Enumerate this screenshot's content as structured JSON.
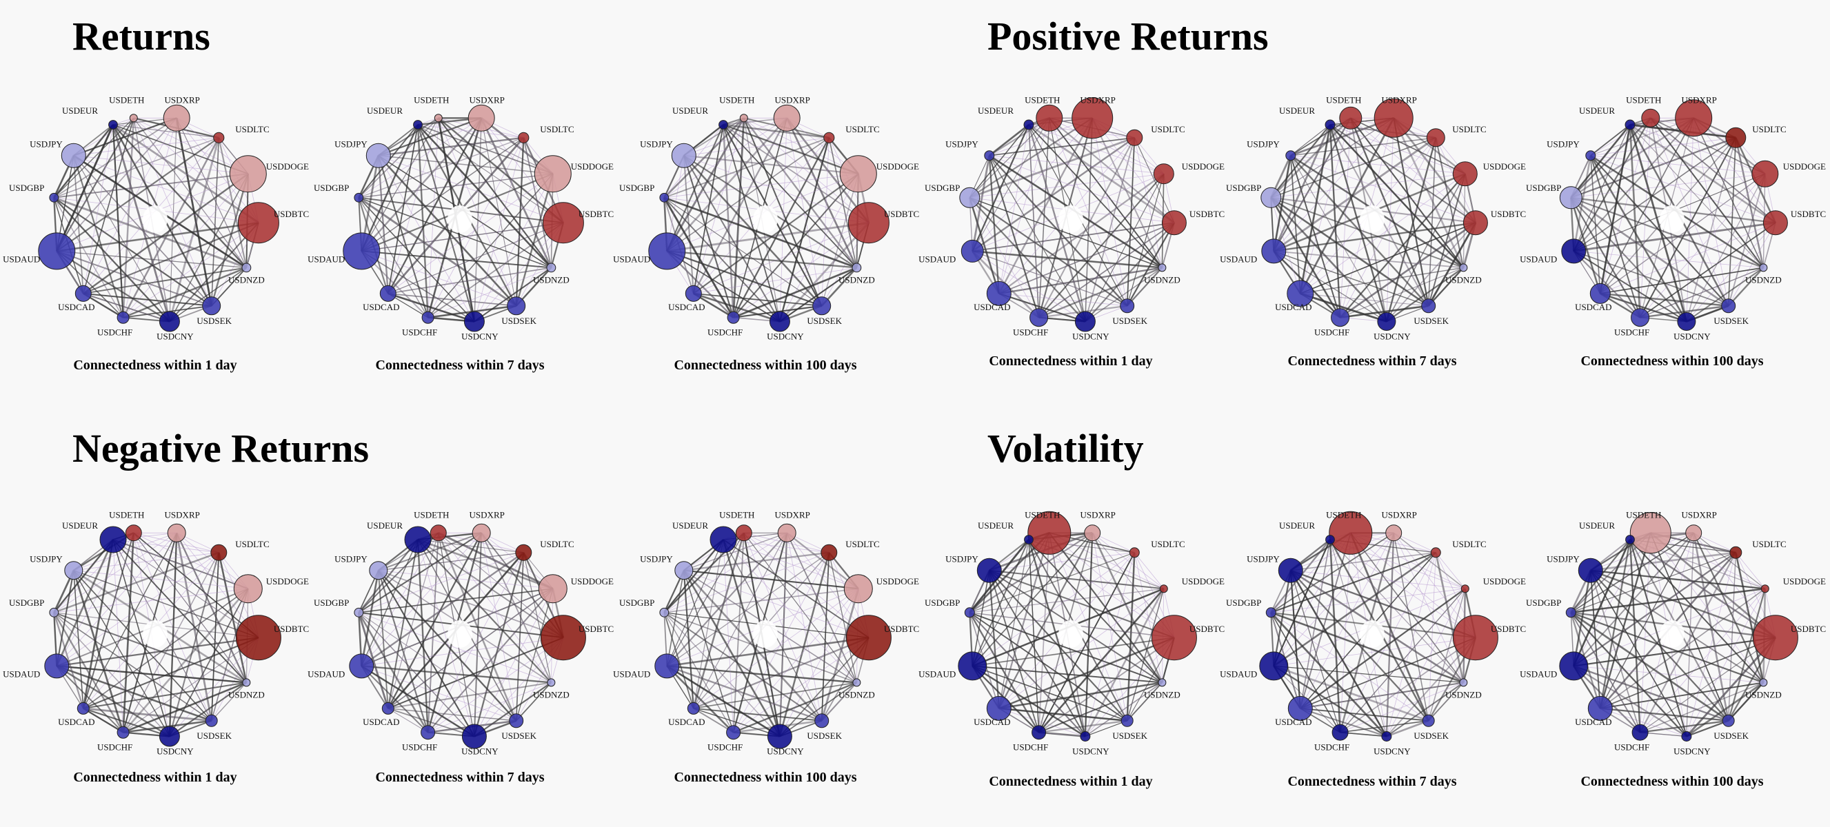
{
  "node_labels": [
    "USDETH",
    "USDXRP",
    "USDLTC",
    "USDDOGE",
    "USDBTC",
    "USDNZD",
    "USDSEK",
    "USDCNY",
    "USDCHF",
    "USDCAD",
    "USDAUD",
    "USDGBP",
    "USDJPY",
    "USDEUR"
  ],
  "colors": {
    "red_dark": "#8b1a12",
    "red": "#a83232",
    "red_light": "#d49a9a",
    "blue_dark": "#0c0c8c",
    "blue": "#3a3ab0",
    "blue_light": "#a0a0dc",
    "edge_strong": "#333333",
    "edge_weak": "#b89ad0"
  },
  "panels": [
    {
      "title": "Returns",
      "networks": [
        {
          "caption": "Connectedness within 1 day",
          "nodes": [
            {
              "size": 0.05,
              "color": "red_light"
            },
            {
              "size": 0.5,
              "color": "red_light"
            },
            {
              "size": 0.12,
              "color": "red"
            },
            {
              "size": 0.75,
              "color": "red_light"
            },
            {
              "size": 0.85,
              "color": "red"
            },
            {
              "size": 0.08,
              "color": "blue_light"
            },
            {
              "size": 0.3,
              "color": "blue"
            },
            {
              "size": 0.35,
              "color": "blue_dark"
            },
            {
              "size": 0.15,
              "color": "blue"
            },
            {
              "size": 0.25,
              "color": "blue"
            },
            {
              "size": 0.75,
              "color": "blue"
            },
            {
              "size": 0.08,
              "color": "blue"
            },
            {
              "size": 0.45,
              "color": "blue_light"
            },
            {
              "size": 0.08,
              "color": "blue_dark"
            }
          ]
        },
        {
          "caption": "Connectedness within 7 days",
          "nodes": [
            {
              "size": 0.05,
              "color": "red_light"
            },
            {
              "size": 0.5,
              "color": "red_light"
            },
            {
              "size": 0.12,
              "color": "red"
            },
            {
              "size": 0.75,
              "color": "red_light"
            },
            {
              "size": 0.85,
              "color": "red"
            },
            {
              "size": 0.08,
              "color": "blue_light"
            },
            {
              "size": 0.3,
              "color": "blue"
            },
            {
              "size": 0.35,
              "color": "blue_dark"
            },
            {
              "size": 0.15,
              "color": "blue"
            },
            {
              "size": 0.25,
              "color": "blue"
            },
            {
              "size": 0.75,
              "color": "blue"
            },
            {
              "size": 0.08,
              "color": "blue"
            },
            {
              "size": 0.45,
              "color": "blue_light"
            },
            {
              "size": 0.08,
              "color": "blue_dark"
            }
          ]
        },
        {
          "caption": "Connectedness within 100 days",
          "nodes": [
            {
              "size": 0.05,
              "color": "red_light"
            },
            {
              "size": 0.5,
              "color": "red_light"
            },
            {
              "size": 0.12,
              "color": "red"
            },
            {
              "size": 0.75,
              "color": "red_light"
            },
            {
              "size": 0.85,
              "color": "red"
            },
            {
              "size": 0.08,
              "color": "blue_light"
            },
            {
              "size": 0.3,
              "color": "blue"
            },
            {
              "size": 0.35,
              "color": "blue_dark"
            },
            {
              "size": 0.15,
              "color": "blue"
            },
            {
              "size": 0.25,
              "color": "blue"
            },
            {
              "size": 0.75,
              "color": "blue"
            },
            {
              "size": 0.08,
              "color": "blue"
            },
            {
              "size": 0.45,
              "color": "blue_light"
            },
            {
              "size": 0.08,
              "color": "blue_dark"
            }
          ]
        }
      ]
    },
    {
      "title": "Positive Returns",
      "networks": [
        {
          "caption": "Connectedness within 1 day",
          "nodes": [
            {
              "size": 0.5,
              "color": "red"
            },
            {
              "size": 0.85,
              "color": "red"
            },
            {
              "size": 0.25,
              "color": "red"
            },
            {
              "size": 0.35,
              "color": "red"
            },
            {
              "size": 0.45,
              "color": "red"
            },
            {
              "size": 0.05,
              "color": "blue_light"
            },
            {
              "size": 0.2,
              "color": "blue"
            },
            {
              "size": 0.35,
              "color": "blue_dark"
            },
            {
              "size": 0.3,
              "color": "blue"
            },
            {
              "size": 0.45,
              "color": "blue"
            },
            {
              "size": 0.4,
              "color": "blue"
            },
            {
              "size": 0.35,
              "color": "blue_light"
            },
            {
              "size": 0.1,
              "color": "blue"
            },
            {
              "size": 0.1,
              "color": "blue_dark"
            }
          ]
        },
        {
          "caption": "Connectedness within 7 days",
          "nodes": [
            {
              "size": 0.4,
              "color": "red"
            },
            {
              "size": 0.8,
              "color": "red"
            },
            {
              "size": 0.3,
              "color": "red"
            },
            {
              "size": 0.45,
              "color": "red"
            },
            {
              "size": 0.45,
              "color": "red"
            },
            {
              "size": 0.05,
              "color": "blue_light"
            },
            {
              "size": 0.2,
              "color": "blue"
            },
            {
              "size": 0.3,
              "color": "blue_dark"
            },
            {
              "size": 0.3,
              "color": "blue"
            },
            {
              "size": 0.5,
              "color": "blue"
            },
            {
              "size": 0.45,
              "color": "blue"
            },
            {
              "size": 0.35,
              "color": "blue_light"
            },
            {
              "size": 0.1,
              "color": "blue"
            },
            {
              "size": 0.1,
              "color": "blue_dark"
            }
          ]
        },
        {
          "caption": "Connectedness within 100 days",
          "nodes": [
            {
              "size": 0.3,
              "color": "red"
            },
            {
              "size": 0.75,
              "color": "red"
            },
            {
              "size": 0.35,
              "color": "red_dark"
            },
            {
              "size": 0.5,
              "color": "red"
            },
            {
              "size": 0.45,
              "color": "red"
            },
            {
              "size": 0.05,
              "color": "blue_light"
            },
            {
              "size": 0.2,
              "color": "blue"
            },
            {
              "size": 0.3,
              "color": "blue_dark"
            },
            {
              "size": 0.3,
              "color": "blue"
            },
            {
              "size": 0.35,
              "color": "blue"
            },
            {
              "size": 0.45,
              "color": "blue_dark"
            },
            {
              "size": 0.4,
              "color": "blue_light"
            },
            {
              "size": 0.1,
              "color": "blue"
            },
            {
              "size": 0.1,
              "color": "blue_dark"
            }
          ]
        }
      ]
    },
    {
      "title": "Negative Returns",
      "networks": [
        {
          "caption": "Connectedness within 1 day",
          "nodes": [
            {
              "size": 0.25,
              "color": "red"
            },
            {
              "size": 0.3,
              "color": "red_light"
            },
            {
              "size": 0.25,
              "color": "red_dark"
            },
            {
              "size": 0.55,
              "color": "red_light"
            },
            {
              "size": 0.95,
              "color": "red_dark"
            },
            {
              "size": 0.05,
              "color": "blue_light"
            },
            {
              "size": 0.15,
              "color": "blue"
            },
            {
              "size": 0.35,
              "color": "blue_dark"
            },
            {
              "size": 0.15,
              "color": "blue"
            },
            {
              "size": 0.15,
              "color": "blue"
            },
            {
              "size": 0.45,
              "color": "blue"
            },
            {
              "size": 0.08,
              "color": "blue_light"
            },
            {
              "size": 0.3,
              "color": "blue_light"
            },
            {
              "size": 0.5,
              "color": "blue_dark"
            }
          ]
        },
        {
          "caption": "Connectedness within 7 days",
          "nodes": [
            {
              "size": 0.25,
              "color": "red"
            },
            {
              "size": 0.3,
              "color": "red_light"
            },
            {
              "size": 0.25,
              "color": "red_dark"
            },
            {
              "size": 0.55,
              "color": "red_light"
            },
            {
              "size": 0.95,
              "color": "red_dark"
            },
            {
              "size": 0.05,
              "color": "blue_light"
            },
            {
              "size": 0.2,
              "color": "blue"
            },
            {
              "size": 0.45,
              "color": "blue_dark"
            },
            {
              "size": 0.2,
              "color": "blue"
            },
            {
              "size": 0.15,
              "color": "blue"
            },
            {
              "size": 0.45,
              "color": "blue"
            },
            {
              "size": 0.08,
              "color": "blue_light"
            },
            {
              "size": 0.3,
              "color": "blue_light"
            },
            {
              "size": 0.5,
              "color": "blue_dark"
            }
          ]
        },
        {
          "caption": "Connectedness within 100 days",
          "nodes": [
            {
              "size": 0.25,
              "color": "red"
            },
            {
              "size": 0.3,
              "color": "red_light"
            },
            {
              "size": 0.25,
              "color": "red_dark"
            },
            {
              "size": 0.55,
              "color": "red_light"
            },
            {
              "size": 0.95,
              "color": "red_dark"
            },
            {
              "size": 0.05,
              "color": "blue_light"
            },
            {
              "size": 0.2,
              "color": "blue"
            },
            {
              "size": 0.45,
              "color": "blue_dark"
            },
            {
              "size": 0.2,
              "color": "blue"
            },
            {
              "size": 0.15,
              "color": "blue"
            },
            {
              "size": 0.45,
              "color": "blue"
            },
            {
              "size": 0.08,
              "color": "blue_light"
            },
            {
              "size": 0.3,
              "color": "blue_light"
            },
            {
              "size": 0.5,
              "color": "blue_dark"
            }
          ]
        }
      ]
    },
    {
      "title": "Volatility",
      "networks": [
        {
          "caption": "Connectedness within 1 day",
          "nodes": [
            {
              "size": 0.9,
              "color": "red"
            },
            {
              "size": 0.25,
              "color": "red_light"
            },
            {
              "size": 0.1,
              "color": "red"
            },
            {
              "size": 0.05,
              "color": "red"
            },
            {
              "size": 0.95,
              "color": "red"
            },
            {
              "size": 0.05,
              "color": "blue_light"
            },
            {
              "size": 0.15,
              "color": "blue"
            },
            {
              "size": 0.1,
              "color": "blue_dark"
            },
            {
              "size": 0.2,
              "color": "blue_dark"
            },
            {
              "size": 0.45,
              "color": "blue"
            },
            {
              "size": 0.55,
              "color": "blue_dark"
            },
            {
              "size": 0.1,
              "color": "blue"
            },
            {
              "size": 0.45,
              "color": "blue_dark"
            },
            {
              "size": 0.08,
              "color": "blue_dark"
            }
          ]
        },
        {
          "caption": "Connectedness within 7 days",
          "nodes": [
            {
              "size": 0.9,
              "color": "red"
            },
            {
              "size": 0.25,
              "color": "red_light"
            },
            {
              "size": 0.1,
              "color": "red"
            },
            {
              "size": 0.05,
              "color": "red"
            },
            {
              "size": 0.95,
              "color": "red"
            },
            {
              "size": 0.05,
              "color": "blue_light"
            },
            {
              "size": 0.15,
              "color": "blue"
            },
            {
              "size": 0.1,
              "color": "blue_dark"
            },
            {
              "size": 0.25,
              "color": "blue_dark"
            },
            {
              "size": 0.45,
              "color": "blue"
            },
            {
              "size": 0.55,
              "color": "blue_dark"
            },
            {
              "size": 0.1,
              "color": "blue"
            },
            {
              "size": 0.45,
              "color": "blue_dark"
            },
            {
              "size": 0.08,
              "color": "blue_dark"
            }
          ]
        },
        {
          "caption": "Connectedness within 100 days",
          "nodes": [
            {
              "size": 0.85,
              "color": "red_light"
            },
            {
              "size": 0.25,
              "color": "red_light"
            },
            {
              "size": 0.15,
              "color": "red_dark"
            },
            {
              "size": 0.05,
              "color": "red"
            },
            {
              "size": 0.95,
              "color": "red"
            },
            {
              "size": 0.05,
              "color": "blue_light"
            },
            {
              "size": 0.15,
              "color": "blue"
            },
            {
              "size": 0.1,
              "color": "blue_dark"
            },
            {
              "size": 0.25,
              "color": "blue_dark"
            },
            {
              "size": 0.45,
              "color": "blue"
            },
            {
              "size": 0.55,
              "color": "blue_dark"
            },
            {
              "size": 0.1,
              "color": "blue"
            },
            {
              "size": 0.45,
              "color": "blue_dark"
            },
            {
              "size": 0.08,
              "color": "blue_dark"
            }
          ]
        }
      ]
    }
  ]
}
